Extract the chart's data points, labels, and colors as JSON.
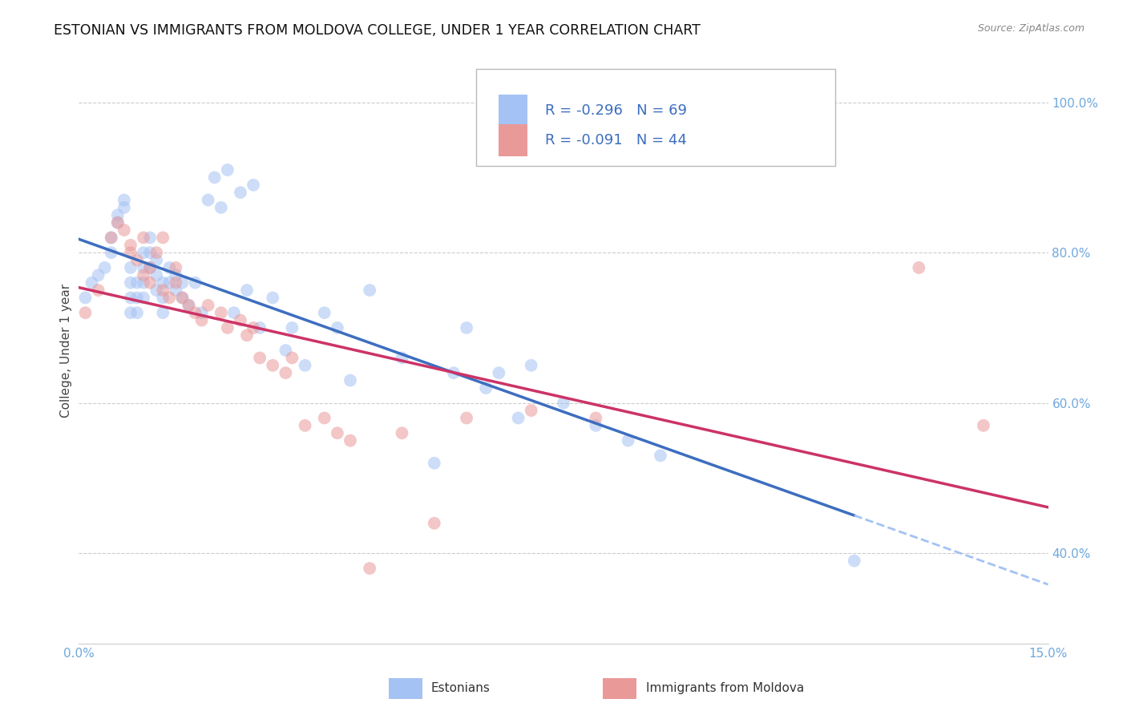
{
  "title": "ESTONIAN VS IMMIGRANTS FROM MOLDOVA COLLEGE, UNDER 1 YEAR CORRELATION CHART",
  "source": "Source: ZipAtlas.com",
  "ylabel": "College, Under 1 year",
  "xlim": [
    0.0,
    0.15
  ],
  "ylim": [
    0.28,
    1.06
  ],
  "yticks": [
    0.4,
    0.6,
    0.8,
    1.0
  ],
  "ytick_labels": [
    "40.0%",
    "60.0%",
    "80.0%",
    "100.0%"
  ],
  "xticks": [
    0.0,
    0.05,
    0.1,
    0.15
  ],
  "xtick_labels": [
    "0.0%",
    "",
    "",
    "15.0%"
  ],
  "R_estonian": -0.296,
  "N_estonian": 69,
  "R_moldova": -0.091,
  "N_moldova": 44,
  "blue_color": "#a4c2f4",
  "pink_color": "#ea9999",
  "line_blue": "#3d6ebf",
  "line_pink": "#cc3366",
  "line_blue_dash_color": "#a4c2f4",
  "background_color": "#ffffff",
  "grid_color": "#cccccc",
  "tick_color": "#6fa8dc",
  "legend_text_color": "#3d6ebf",
  "scatter_size": 130,
  "scatter_alpha": 0.55,
  "title_fontsize": 12.5,
  "tick_fontsize": 11,
  "legend_fontsize": 13,
  "ylabel_fontsize": 11,
  "estonian_x": [
    0.001,
    0.002,
    0.003,
    0.004,
    0.005,
    0.005,
    0.006,
    0.006,
    0.007,
    0.007,
    0.008,
    0.008,
    0.008,
    0.008,
    0.009,
    0.009,
    0.009,
    0.01,
    0.01,
    0.01,
    0.01,
    0.011,
    0.011,
    0.011,
    0.012,
    0.012,
    0.012,
    0.013,
    0.013,
    0.013,
    0.014,
    0.014,
    0.015,
    0.015,
    0.016,
    0.016,
    0.017,
    0.018,
    0.019,
    0.02,
    0.021,
    0.022,
    0.023,
    0.024,
    0.025,
    0.026,
    0.027,
    0.028,
    0.03,
    0.032,
    0.033,
    0.035,
    0.038,
    0.04,
    0.042,
    0.045,
    0.05,
    0.055,
    0.058,
    0.06,
    0.063,
    0.065,
    0.068,
    0.07,
    0.075,
    0.08,
    0.085,
    0.09,
    0.12
  ],
  "estonian_y": [
    0.74,
    0.76,
    0.77,
    0.78,
    0.82,
    0.8,
    0.85,
    0.84,
    0.87,
    0.86,
    0.78,
    0.76,
    0.74,
    0.72,
    0.76,
    0.74,
    0.72,
    0.8,
    0.78,
    0.76,
    0.74,
    0.82,
    0.8,
    0.78,
    0.79,
    0.77,
    0.75,
    0.76,
    0.74,
    0.72,
    0.78,
    0.76,
    0.77,
    0.75,
    0.76,
    0.74,
    0.73,
    0.76,
    0.72,
    0.87,
    0.9,
    0.86,
    0.91,
    0.72,
    0.88,
    0.75,
    0.89,
    0.7,
    0.74,
    0.67,
    0.7,
    0.65,
    0.72,
    0.7,
    0.63,
    0.75,
    0.66,
    0.52,
    0.64,
    0.7,
    0.62,
    0.64,
    0.58,
    0.65,
    0.6,
    0.57,
    0.55,
    0.53,
    0.39
  ],
  "moldova_x": [
    0.001,
    0.003,
    0.005,
    0.006,
    0.007,
    0.008,
    0.008,
    0.009,
    0.01,
    0.01,
    0.011,
    0.011,
    0.012,
    0.013,
    0.013,
    0.014,
    0.015,
    0.015,
    0.016,
    0.017,
    0.018,
    0.019,
    0.02,
    0.022,
    0.023,
    0.025,
    0.026,
    0.027,
    0.028,
    0.03,
    0.032,
    0.033,
    0.035,
    0.038,
    0.04,
    0.042,
    0.045,
    0.05,
    0.055,
    0.06,
    0.07,
    0.08,
    0.13,
    0.14
  ],
  "moldova_y": [
    0.72,
    0.75,
    0.82,
    0.84,
    0.83,
    0.81,
    0.8,
    0.79,
    0.82,
    0.77,
    0.78,
    0.76,
    0.8,
    0.82,
    0.75,
    0.74,
    0.78,
    0.76,
    0.74,
    0.73,
    0.72,
    0.71,
    0.73,
    0.72,
    0.7,
    0.71,
    0.69,
    0.7,
    0.66,
    0.65,
    0.64,
    0.66,
    0.57,
    0.58,
    0.56,
    0.55,
    0.38,
    0.56,
    0.44,
    0.58,
    0.59,
    0.58,
    0.78,
    0.57
  ]
}
